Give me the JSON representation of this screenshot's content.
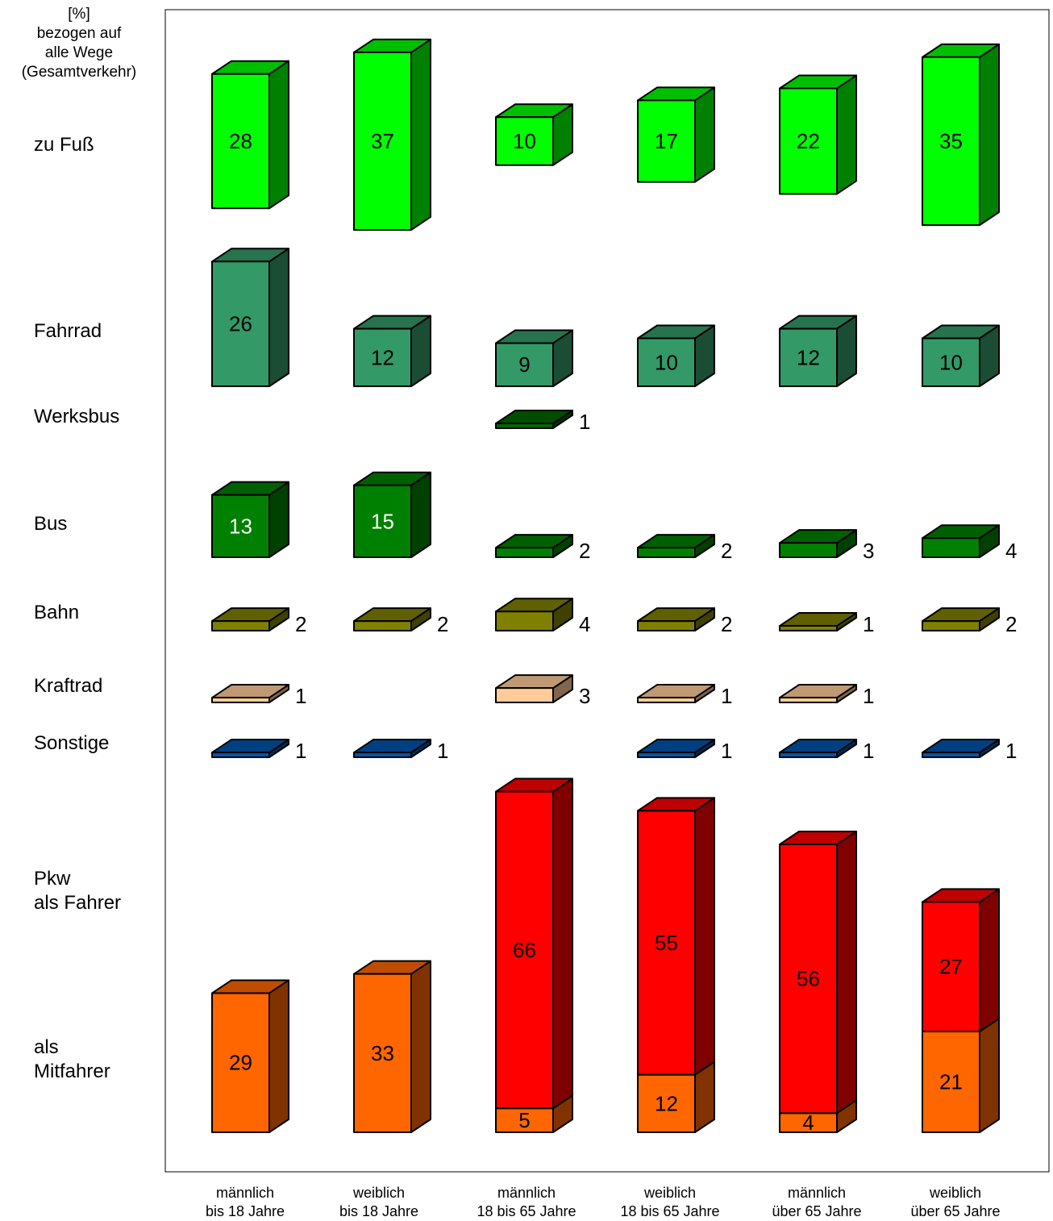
{
  "chart_data": {
    "type": "bar",
    "unit_label": "[%]\nbezogen auf\nalle Wege\n(Gesamtverkehr)",
    "categories": [
      "männlich\nbis 18 Jahre",
      "weiblich\nbis 18 Jahre",
      "männlich\n18 bis 65 Jahre",
      "weiblich\n18 bis 65 Jahre",
      "männlich\nüber 65 Jahre",
      "weiblich\nüber 65 Jahre"
    ],
    "series": [
      {
        "name": "zu Fuß",
        "values": [
          28,
          37,
          10,
          17,
          22,
          35
        ],
        "color": "#00ff00"
      },
      {
        "name": "Fahrrad",
        "values": [
          26,
          12,
          9,
          10,
          12,
          10
        ],
        "color": "#339966"
      },
      {
        "name": "Werksbus",
        "values": [
          null,
          null,
          1,
          null,
          null,
          null
        ],
        "color": "#006600"
      },
      {
        "name": "Bus",
        "values": [
          13,
          15,
          2,
          2,
          3,
          4
        ],
        "color": "#008000"
      },
      {
        "name": "Bahn",
        "values": [
          2,
          2,
          4,
          2,
          1,
          2
        ],
        "color": "#808000"
      },
      {
        "name": "Kraftrad",
        "values": [
          1,
          null,
          3,
          1,
          1,
          null
        ],
        "color": "#ffcc99"
      },
      {
        "name": "Sonstige",
        "values": [
          1,
          1,
          null,
          1,
          1,
          1
        ],
        "color": "#0055aa"
      },
      {
        "name": "Pkw\nals Fahrer",
        "values": [
          null,
          null,
          66,
          55,
          56,
          27
        ],
        "color": "#ff0000"
      },
      {
        "name": "als\nMitfahrer",
        "values": [
          29,
          33,
          5,
          12,
          4,
          21
        ],
        "color": "#ff6600"
      }
    ]
  }
}
